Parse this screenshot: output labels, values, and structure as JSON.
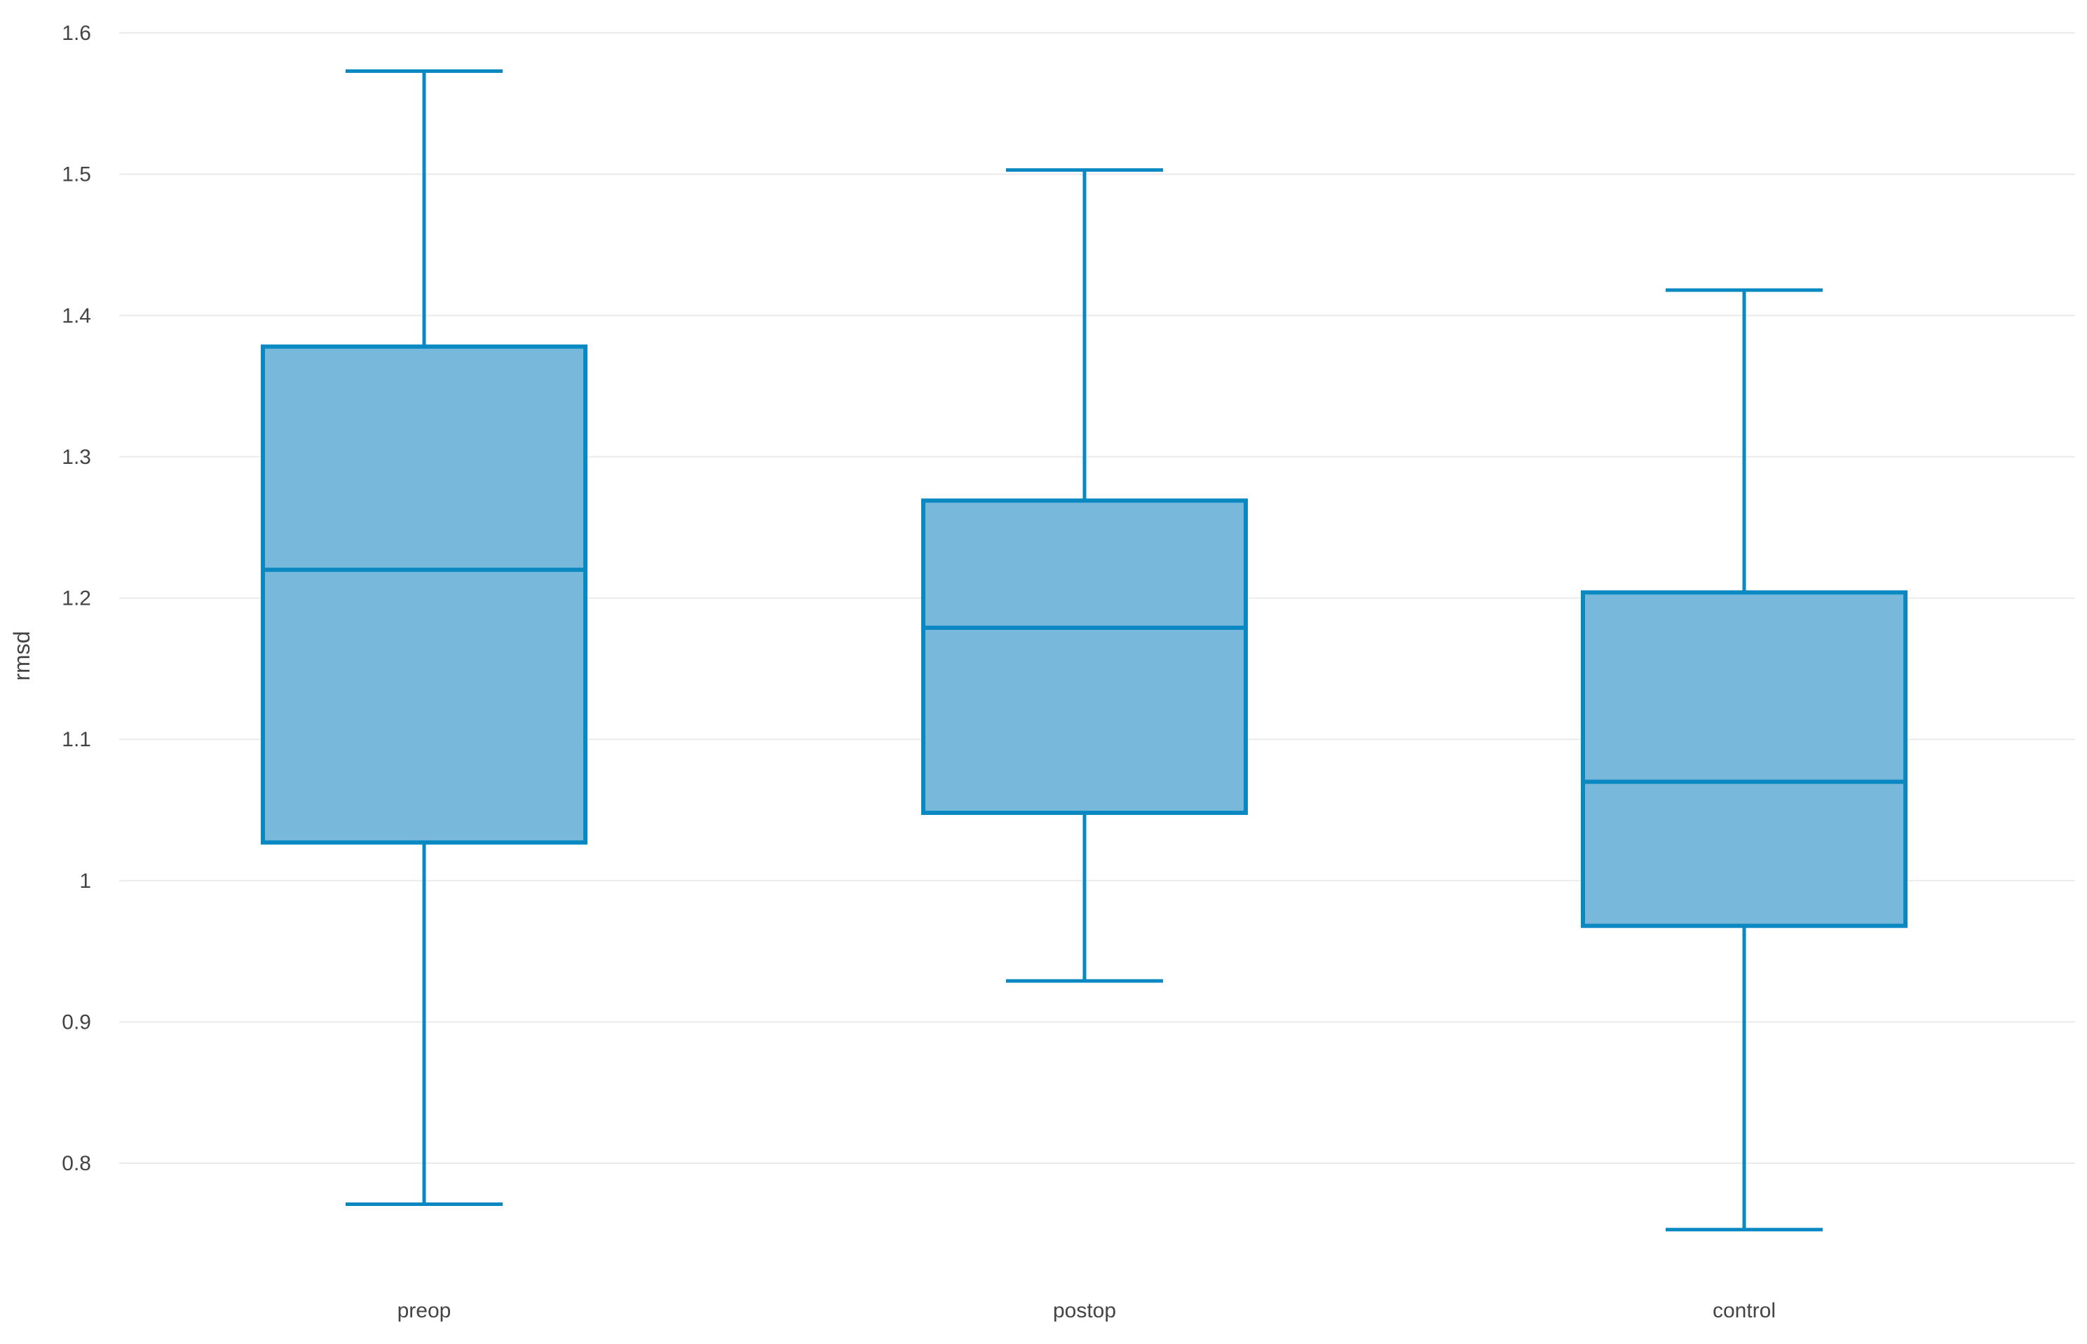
{
  "chart_data": {
    "type": "box",
    "title": "",
    "xlabel": "",
    "ylabel": "rmsd",
    "ylim": [
      0.7,
      1.6
    ],
    "yticks": [
      0.8,
      0.9,
      1.0,
      1.1,
      1.2,
      1.3,
      1.4,
      1.5,
      1.6
    ],
    "ytick_labels": [
      "0.8",
      "0.9",
      "1",
      "1.1",
      "1.2",
      "1.3",
      "1.4",
      "1.5",
      "1.6"
    ],
    "grid": true,
    "legend": "none",
    "categories": [
      "preop",
      "postop",
      "control"
    ],
    "boxes": [
      {
        "category": "preop",
        "min": 0.771,
        "q1": 1.027,
        "median": 1.22,
        "q3": 1.378,
        "max": 1.573
      },
      {
        "category": "postop",
        "min": 0.929,
        "q1": 1.048,
        "median": 1.179,
        "q3": 1.269,
        "max": 1.503
      },
      {
        "category": "control",
        "min": 0.753,
        "q1": 0.968,
        "median": 1.07,
        "q3": 1.204,
        "max": 1.418
      }
    ],
    "colors": {
      "stroke": "#0a88c2",
      "fill": "#78b9db",
      "grid": "#ebebeb",
      "text": "#444444"
    }
  }
}
